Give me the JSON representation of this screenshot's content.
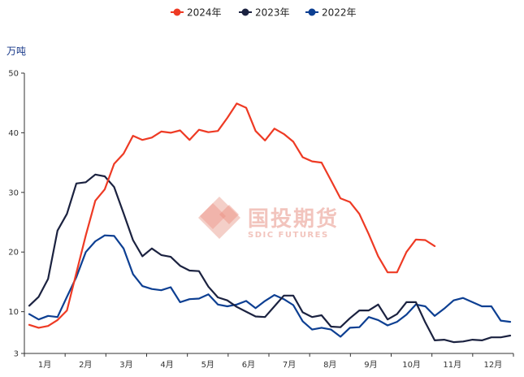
{
  "chart_data": {
    "type": "line",
    "unit_label": "万吨",
    "ylim": [
      3,
      50
    ],
    "y_ticks": [
      3,
      10,
      20,
      30,
      40,
      50
    ],
    "x_labels": [
      "1月",
      "2月",
      "3月",
      "4月",
      "5月",
      "6月",
      "7月",
      "8月",
      "9月",
      "10月",
      "11月",
      "12月"
    ],
    "x_points": 52,
    "legend_position": "top",
    "grid": false,
    "series": [
      {
        "name": "2024年",
        "color": "#ee3a24",
        "values": [
          7.8,
          7.3,
          7.6,
          8.6,
          10.2,
          16.5,
          22.8,
          28.6,
          30.5,
          34.8,
          36.5,
          39.5,
          38.8,
          39.2,
          40.2,
          40.0,
          40.4,
          38.8,
          40.5,
          40.1,
          40.3,
          42.5,
          44.9,
          44.2,
          40.3,
          38.7,
          40.7,
          39.8,
          38.5,
          35.9,
          35.2,
          35.0,
          32.0,
          29.0,
          28.4,
          26.4,
          23.0,
          19.3,
          16.6,
          16.6,
          20.0,
          22.1,
          22.0,
          21.0
        ]
      },
      {
        "name": "2023年",
        "color": "#1b2240",
        "values": [
          11.0,
          12.5,
          15.5,
          23.6,
          26.4,
          31.5,
          31.7,
          33.0,
          32.7,
          30.9,
          26.5,
          22.0,
          19.3,
          20.6,
          19.5,
          19.2,
          17.7,
          16.9,
          16.8,
          14.2,
          12.4,
          11.9,
          10.8,
          10.0,
          9.2,
          9.1,
          10.9,
          12.7,
          12.7,
          9.9,
          9.1,
          9.4,
          7.5,
          7.4,
          8.9,
          10.2,
          10.2,
          11.2,
          8.7,
          9.6,
          11.6,
          11.6,
          8.2,
          5.2,
          5.3,
          4.9,
          5.0,
          5.3,
          5.2,
          5.7,
          5.7,
          6.0
        ]
      },
      {
        "name": "2022年",
        "color": "#0d3f92",
        "values": [
          9.6,
          8.7,
          9.3,
          9.1,
          12.5,
          15.8,
          20.0,
          21.8,
          22.8,
          22.7,
          20.6,
          16.3,
          14.3,
          13.8,
          13.6,
          14.1,
          11.6,
          12.1,
          12.2,
          12.9,
          11.2,
          10.9,
          11.2,
          11.8,
          10.6,
          11.8,
          12.8,
          12.1,
          11.1,
          8.4,
          7.0,
          7.3,
          7.0,
          5.8,
          7.3,
          7.4,
          9.1,
          8.6,
          7.7,
          8.3,
          9.5,
          11.2,
          10.9,
          9.3,
          10.5,
          11.9,
          12.3,
          11.6,
          10.9,
          10.9,
          8.5,
          8.3
        ]
      }
    ]
  },
  "watermark": {
    "text_cn": "国投期货",
    "text_en": "SDIC FUTURES",
    "logo_color": "#f2c4bd"
  }
}
